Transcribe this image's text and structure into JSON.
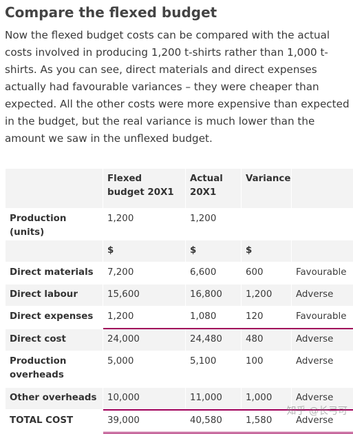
{
  "heading": "Compare the flexed budget",
  "paragraph": "Now the flexed budget costs can be compared with the actual costs involved in producing 1,200 t-shirts rather than 1,000 t-shirts. As you can see, direct materials and direct expenses actually had favourable variances – they were cheaper than expected. All the other costs were more expensive than expected in the budget, but the real variance is much lower than the amount we saw in the unflexed budget.",
  "table": {
    "headers": [
      "",
      "Flexed budget 20X1",
      "Actual 20X1",
      "Variance",
      ""
    ],
    "rows": [
      {
        "label": "Production (units)",
        "flexed": "1,200",
        "actual": "1,200",
        "variance": "",
        "result": ""
      },
      {
        "label": "",
        "flexed": "$",
        "actual": "$",
        "variance": "$",
        "result": ""
      },
      {
        "label": "Direct materials",
        "flexed": "7,200",
        "actual": "6,600",
        "variance": "600",
        "result": "Favourable"
      },
      {
        "label": "Direct labour",
        "flexed": "15,600",
        "actual": "16,800",
        "variance": "1,200",
        "result": "Adverse"
      },
      {
        "label": "Direct expenses",
        "flexed": "1,200",
        "actual": "1,080",
        "variance": "120",
        "result": "Favourable"
      },
      {
        "label": "Direct cost",
        "flexed": "24,000",
        "actual": "24,480",
        "variance": "480",
        "result": "Adverse"
      },
      {
        "label": "Production overheads",
        "flexed": "5,000",
        "actual": "5,100",
        "variance": "100",
        "result": "Adverse"
      },
      {
        "label": "Other overheads",
        "flexed": "10,000",
        "actual": "11,000",
        "variance": "1,000",
        "result": "Adverse"
      },
      {
        "label": "TOTAL COST",
        "flexed": "39,000",
        "actual": "40,580",
        "variance": "1,580",
        "result": "Adverse"
      }
    ]
  },
  "watermark": "知乎 @长弓可"
}
